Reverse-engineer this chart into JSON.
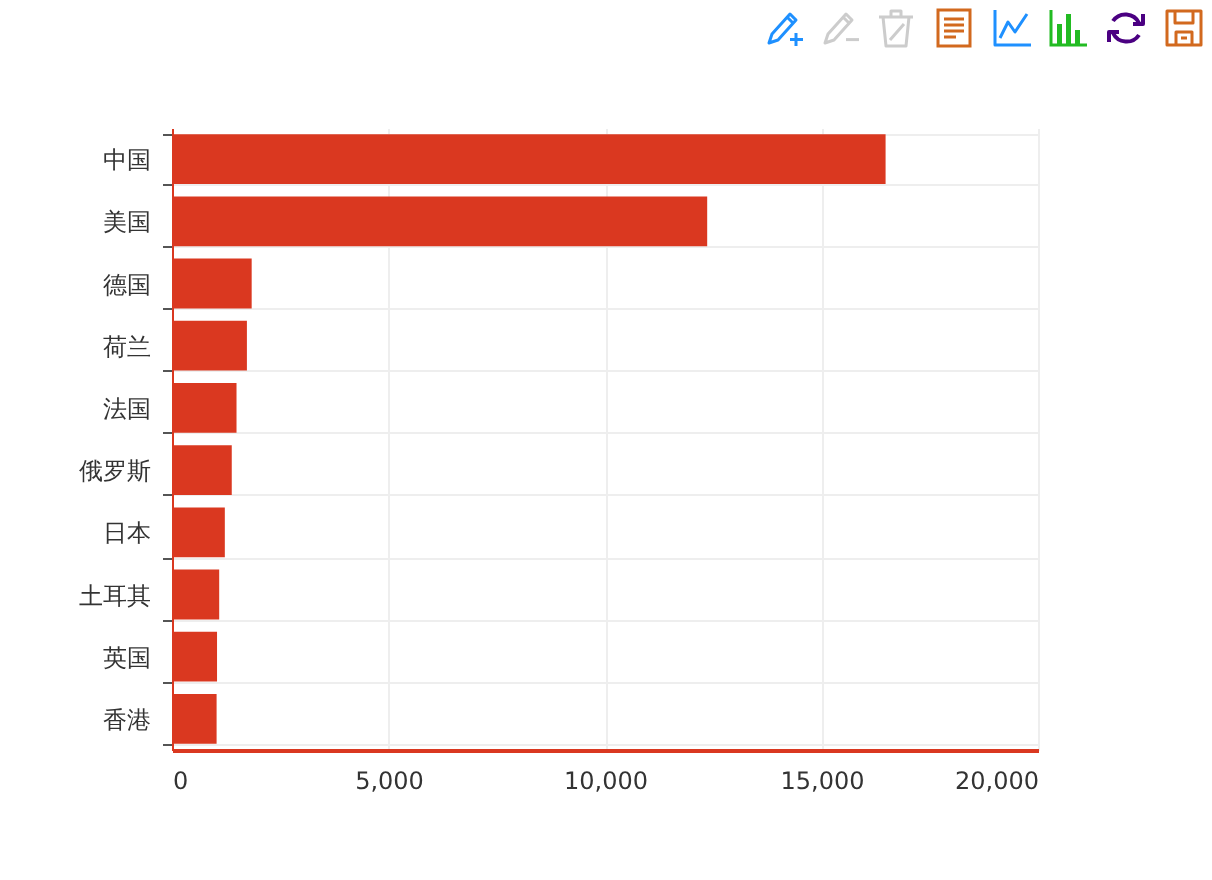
{
  "chart_data": {
    "type": "bar",
    "orientation": "horizontal",
    "categories": [
      "中国",
      "美国",
      "德国",
      "荷兰",
      "法国",
      "俄罗斯",
      "日本",
      "土耳其",
      "英国",
      "香港"
    ],
    "values": [
      16480,
      12360,
      1840,
      1730,
      1490,
      1380,
      1220,
      1090,
      1040,
      1030
    ],
    "color": "#da3820",
    "xlim": [
      0,
      20000
    ],
    "xticks": [
      0,
      {
        "value": 5000,
        "label": "5,000"
      },
      {
        "value": 10000,
        "label": "10,000"
      },
      {
        "value": 15000,
        "label": "15,000"
      },
      {
        "value": 20000,
        "label": "20,000"
      }
    ],
    "grid": true
  }
}
